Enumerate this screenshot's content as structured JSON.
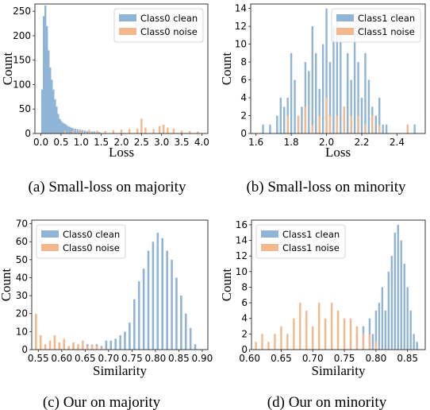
{
  "colors": {
    "clean": "#8fb4d6",
    "noise": "#f3b98c"
  },
  "chart_data": [
    {
      "type": "bar",
      "caption": "(a)  Small-loss on majority",
      "xlabel": "Loss",
      "ylabel": "Count",
      "xlim": [
        -0.15,
        4.15
      ],
      "ylim": [
        0,
        265
      ],
      "xticks": [
        "0.0",
        "0.5",
        "1.0",
        "1.5",
        "2.0",
        "2.5",
        "3.0",
        "3.5",
        "4.0"
      ],
      "yticks": [
        "0",
        "50",
        "100",
        "150",
        "200",
        "250"
      ],
      "legend_position": "top-right",
      "series": [
        {
          "name": "Class0 clean",
          "color": "clean",
          "x": [
            0.03,
            0.07,
            0.11,
            0.15,
            0.19,
            0.23,
            0.27,
            0.31,
            0.35,
            0.39,
            0.43,
            0.47,
            0.51,
            0.55,
            0.59,
            0.63,
            0.67,
            0.71,
            0.75,
            0.79,
            0.85,
            0.91,
            0.97,
            1.03,
            1.09,
            1.15,
            1.21,
            1.27,
            1.33,
            1.39,
            1.45
          ],
          "values": [
            90,
            240,
            262,
            220,
            170,
            135,
            110,
            90,
            70,
            55,
            40,
            30,
            25,
            22,
            20,
            18,
            15,
            14,
            12,
            11,
            10,
            9,
            8,
            7,
            6,
            5,
            5,
            4,
            4,
            3,
            3
          ]
        },
        {
          "name": "Class0 noise",
          "color": "noise",
          "x": [
            0.6,
            0.8,
            1.0,
            1.2,
            1.4,
            1.6,
            1.8,
            2.0,
            2.2,
            2.4,
            2.5,
            2.6,
            2.8,
            2.95,
            3.05,
            3.15,
            3.3,
            3.5,
            3.7,
            3.9
          ],
          "values": [
            6,
            5,
            7,
            8,
            6,
            5,
            7,
            8,
            9,
            10,
            30,
            12,
            9,
            15,
            18,
            12,
            10,
            6,
            5,
            4
          ]
        }
      ]
    },
    {
      "type": "bar",
      "caption": "(b)  Small-loss on minority",
      "xlabel": "Loss",
      "ylabel": "Count",
      "xlim": [
        1.57,
        2.56
      ],
      "ylim": [
        0,
        14.5
      ],
      "xticks": [
        "1.6",
        "1.8",
        "2.0",
        "2.2",
        "2.4"
      ],
      "yticks": [
        "0",
        "2",
        "4",
        "6",
        "8",
        "10",
        "12",
        "14"
      ],
      "legend_position": "top-right",
      "series": [
        {
          "name": "Class1 clean",
          "color": "clean",
          "x": [
            1.64,
            1.68,
            1.72,
            1.74,
            1.76,
            1.78,
            1.8,
            1.82,
            1.84,
            1.86,
            1.88,
            1.9,
            1.92,
            1.94,
            1.96,
            1.98,
            2.0,
            2.02,
            2.04,
            2.06,
            2.08,
            2.1,
            2.12,
            2.14,
            2.16,
            2.18,
            2.2,
            2.22,
            2.24,
            2.26,
            2.28,
            2.3,
            2.32,
            2.34,
            2.5
          ],
          "values": [
            1,
            1,
            2,
            4,
            3,
            4,
            9,
            6,
            2,
            3,
            8,
            7,
            12,
            9,
            5,
            10,
            14,
            8,
            12,
            13,
            11,
            3,
            9,
            6,
            12,
            8,
            4,
            9,
            6,
            3,
            2,
            4,
            1,
            1,
            1
          ]
        },
        {
          "name": "Class1 noise",
          "color": "noise",
          "x": [
            1.78,
            1.84,
            1.88,
            1.92,
            1.96,
            2.0,
            2.02,
            2.06,
            2.1,
            2.14,
            2.18,
            2.22,
            2.26,
            2.3,
            2.46
          ],
          "values": [
            2,
            2,
            3,
            1,
            2,
            4,
            2,
            2,
            3,
            2,
            2,
            1,
            2,
            1,
            1
          ]
        }
      ]
    },
    {
      "type": "bar",
      "caption": "(c)  Our on majority",
      "xlabel": "Similarity",
      "ylabel": "Count",
      "xlim": [
        0.536,
        0.912
      ],
      "ylim": [
        0,
        72
      ],
      "xticks": [
        "0.55",
        "0.60",
        "0.65",
        "0.70",
        "0.75",
        "0.80",
        "0.85",
        "0.90"
      ],
      "yticks": [
        "0",
        "10",
        "20",
        "30",
        "40",
        "50",
        "60",
        "70"
      ],
      "legend_position": "top-left",
      "series": [
        {
          "name": "Class0 clean",
          "color": "clean",
          "x": [
            0.595,
            0.605,
            0.615,
            0.625,
            0.635,
            0.645,
            0.655,
            0.665,
            0.675,
            0.685,
            0.695,
            0.705,
            0.715,
            0.725,
            0.735,
            0.745,
            0.755,
            0.765,
            0.775,
            0.785,
            0.795,
            0.805,
            0.815,
            0.825,
            0.835,
            0.845,
            0.855,
            0.865,
            0.875,
            0.885
          ],
          "values": [
            1,
            2,
            1,
            3,
            1,
            2,
            3,
            2,
            3,
            2,
            5,
            5,
            6,
            8,
            10,
            15,
            28,
            38,
            45,
            55,
            60,
            65,
            62,
            55,
            50,
            40,
            30,
            20,
            12,
            3
          ]
        },
        {
          "name": "Class0 noise",
          "color": "noise",
          "x": [
            0.545,
            0.555,
            0.565,
            0.575,
            0.585,
            0.595,
            0.605,
            0.615,
            0.625,
            0.635,
            0.645,
            0.655,
            0.665,
            0.675,
            0.685
          ],
          "values": [
            20,
            8,
            3,
            5,
            8,
            4,
            6,
            2,
            4,
            3,
            5,
            2,
            3,
            2,
            1
          ]
        }
      ]
    },
    {
      "type": "bar",
      "caption": "(d)  Our on minority",
      "xlabel": "Similarity",
      "ylabel": "Count",
      "xlim": [
        0.603,
        0.878
      ],
      "ylim": [
        0,
        16.6
      ],
      "xticks": [
        "0.60",
        "0.65",
        "0.70",
        "0.75",
        "0.80",
        "0.85"
      ],
      "yticks": [
        "0",
        "2",
        "4",
        "6",
        "8",
        "10",
        "12",
        "14",
        "16"
      ],
      "legend_position": "top-left",
      "series": [
        {
          "name": "Class1 clean",
          "color": "clean",
          "x": [
            0.76,
            0.77,
            0.78,
            0.79,
            0.795,
            0.8,
            0.805,
            0.81,
            0.815,
            0.82,
            0.825,
            0.83,
            0.835,
            0.84,
            0.845,
            0.85,
            0.855,
            0.86,
            0.865
          ],
          "values": [
            1,
            2,
            3,
            4,
            2,
            5,
            6,
            8,
            5,
            10,
            12,
            15,
            16,
            14,
            11,
            8,
            5,
            2,
            1
          ]
        },
        {
          "name": "Class1 noise",
          "color": "noise",
          "x": [
            0.61,
            0.62,
            0.63,
            0.64,
            0.65,
            0.66,
            0.67,
            0.68,
            0.69,
            0.7,
            0.71,
            0.72,
            0.73,
            0.74,
            0.75,
            0.76,
            0.77,
            0.78,
            0.79,
            0.8
          ],
          "values": [
            1,
            2,
            1,
            2,
            3,
            2,
            4,
            6,
            5,
            3,
            6,
            4,
            6,
            5,
            4,
            4,
            3,
            2,
            2,
            1
          ]
        }
      ]
    }
  ]
}
